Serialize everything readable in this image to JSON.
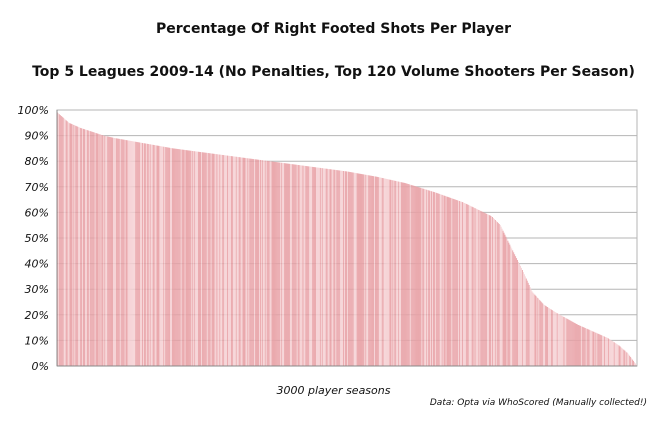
{
  "chart_data": {
    "type": "bar",
    "title": "Percentage Of Right Footed Shots Per Player",
    "subtitle": "Top 5 Leagues 2009-14 (No Penalties, Top 120 Volume Shooters Per Season)",
    "xlabel": "3000 player seasons",
    "ylabel": "",
    "ylim": [
      0,
      100
    ],
    "yticks": [
      "0%",
      "10%",
      "20%",
      "30%",
      "40%",
      "50%",
      "60%",
      "70%",
      "80%",
      "90%",
      "100%"
    ],
    "grid": true,
    "n_points": 600,
    "x": [
      0,
      0.02,
      0.04,
      0.06,
      0.08,
      0.1,
      0.15,
      0.2,
      0.3,
      0.4,
      0.5,
      0.55,
      0.6,
      0.65,
      0.7,
      0.75,
      0.765,
      0.78,
      0.8,
      0.82,
      0.84,
      0.86,
      0.88,
      0.9,
      0.95,
      0.97,
      0.985,
      1.0
    ],
    "values": [
      99,
      95,
      93,
      91.5,
      90,
      89,
      87,
      85,
      82,
      79,
      76,
      74,
      71.5,
      68,
      64,
      58.5,
      55,
      48,
      39,
      29,
      24,
      21,
      18.5,
      16,
      11,
      8,
      5,
      0.5
    ],
    "source": "Data: Opta via WhoScored (Manually collected!)",
    "colors": {
      "bar": "#e8a1a6",
      "bar_light": "#f5cfd2",
      "grid": "#b5b5b5",
      "axis": "#888888"
    }
  }
}
